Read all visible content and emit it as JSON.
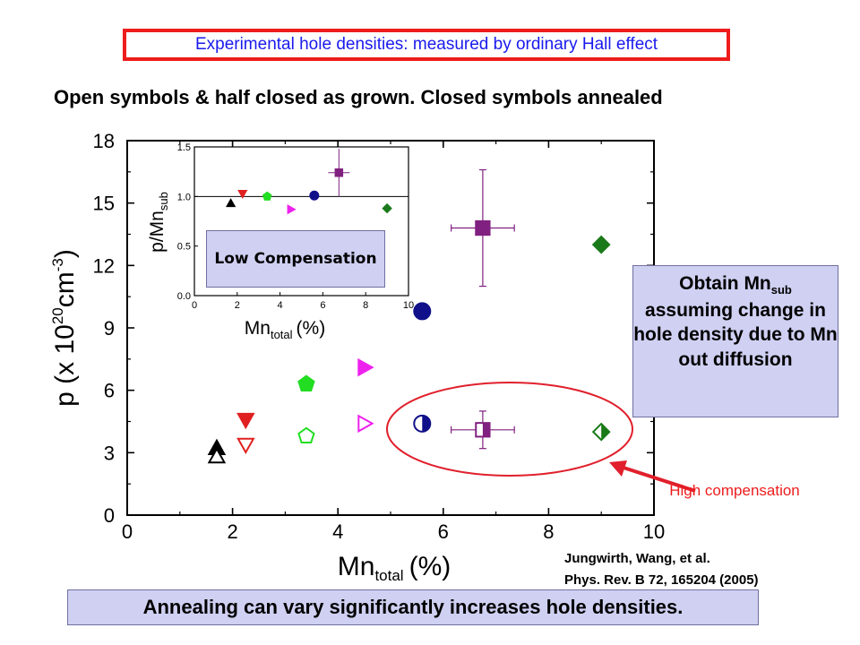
{
  "header": {
    "title": "Experimental hole densities: measured by ordinary Hall effect"
  },
  "subtitle": "Open symbols & half closed as grown. Closed symbols annealed",
  "callouts": {
    "low_compensation": "Low Compensation",
    "obtain_prefix": "Obtain Mn",
    "obtain_sub": "sub",
    "obtain_rest": "assuming change in hole density due to Mn out diffusion",
    "high_compensation": "High compensation",
    "citation_line1": "Jungwirth, Wang, et al.",
    "citation_line2": "Phys. Rev. B 72, 165204 (2005)",
    "bottom": "Annealing can vary significantly increases hole densities."
  },
  "colors": {
    "header_border": "#ee1c1c",
    "header_text": "#1a1aee",
    "callout_bg": "#cfd0f2",
    "arrow": "#e0202c",
    "ellipse": "#e0202c"
  },
  "chart_data": [
    {
      "type": "scatter",
      "title": "",
      "xlabel_main": "Mn",
      "xlabel_sub": "total",
      "xlabel_unit": "(%)",
      "ylabel_parts": {
        "pre": "p (x 10",
        "sup1": "20",
        "mid": "cm",
        "sup2": "-3",
        "post": ")"
      },
      "xlim": [
        0,
        10
      ],
      "ylim": [
        0,
        18
      ],
      "x_ticks": [
        "0",
        "2",
        "4",
        "6",
        "8",
        "10"
      ],
      "y_ticks": [
        "0",
        "3",
        "6",
        "9",
        "12",
        "15",
        "18"
      ],
      "grid": false,
      "series": [
        {
          "x": 1.7,
          "y": 3.2,
          "color": "#000000",
          "marker": "triangle-up",
          "fill": "full"
        },
        {
          "x": 1.7,
          "y": 2.8,
          "color": "#000000",
          "marker": "triangle-up",
          "fill": "open"
        },
        {
          "x": 2.25,
          "y": 4.6,
          "color": "#e02020",
          "marker": "triangle-down",
          "fill": "full"
        },
        {
          "x": 2.25,
          "y": 3.4,
          "color": "#e02020",
          "marker": "triangle-down",
          "fill": "open"
        },
        {
          "x": 3.4,
          "y": 6.3,
          "color": "#22dd22",
          "marker": "pentagon",
          "fill": "full"
        },
        {
          "x": 3.4,
          "y": 3.8,
          "color": "#22dd22",
          "marker": "pentagon",
          "fill": "open"
        },
        {
          "x": 4.5,
          "y": 7.1,
          "color": "#ee22ee",
          "marker": "triangle-right",
          "fill": "full"
        },
        {
          "x": 4.5,
          "y": 4.4,
          "color": "#ee22ee",
          "marker": "triangle-right",
          "fill": "open"
        },
        {
          "x": 5.6,
          "y": 9.8,
          "color": "#10108a",
          "marker": "circle",
          "fill": "full"
        },
        {
          "x": 5.6,
          "y": 4.4,
          "color": "#10108a",
          "marker": "circle",
          "fill": "half"
        },
        {
          "x": 6.75,
          "y": 13.8,
          "color": "#802080",
          "marker": "square",
          "fill": "full",
          "xerr": 0.6,
          "yerr": 2.8
        },
        {
          "x": 6.75,
          "y": 4.1,
          "color": "#802080",
          "marker": "square",
          "fill": "half",
          "xerr": 0.6,
          "yerr": 0.9
        },
        {
          "x": 9.0,
          "y": 13.0,
          "color": "#1a7a1a",
          "marker": "diamond",
          "fill": "full"
        },
        {
          "x": 9.0,
          "y": 4.0,
          "color": "#1a7a1a",
          "marker": "diamond",
          "fill": "half"
        }
      ]
    },
    {
      "type": "scatter",
      "title": "",
      "xlabel_main": "Mn",
      "xlabel_sub": "total",
      "xlabel_unit": "(%)",
      "ylabel_main": "p/Mn",
      "ylabel_sub": "sub",
      "xlim": [
        0,
        10
      ],
      "ylim": [
        0,
        1.5
      ],
      "x_ticks": [
        "0",
        "2",
        "4",
        "6",
        "8",
        "10"
      ],
      "y_ticks": [
        "0.0",
        "0.5",
        "1.0",
        "1.5"
      ],
      "reference_line": 1.0,
      "grid": false,
      "series": [
        {
          "x": 1.7,
          "y": 0.93,
          "color": "#000000",
          "marker": "triangle-up",
          "fill": "full"
        },
        {
          "x": 2.25,
          "y": 1.03,
          "color": "#e02020",
          "marker": "triangle-down",
          "fill": "full"
        },
        {
          "x": 3.4,
          "y": 1.0,
          "color": "#22dd22",
          "marker": "pentagon",
          "fill": "full"
        },
        {
          "x": 4.5,
          "y": 0.87,
          "color": "#ee22ee",
          "marker": "triangle-right",
          "fill": "full"
        },
        {
          "x": 5.6,
          "y": 1.01,
          "color": "#10108a",
          "marker": "circle",
          "fill": "full"
        },
        {
          "x": 6.75,
          "y": 1.24,
          "color": "#802080",
          "marker": "square",
          "fill": "full",
          "xerr": 0.5,
          "yerr": 0.24
        },
        {
          "x": 9.0,
          "y": 0.88,
          "color": "#1a7a1a",
          "marker": "diamond",
          "fill": "full"
        }
      ]
    }
  ]
}
